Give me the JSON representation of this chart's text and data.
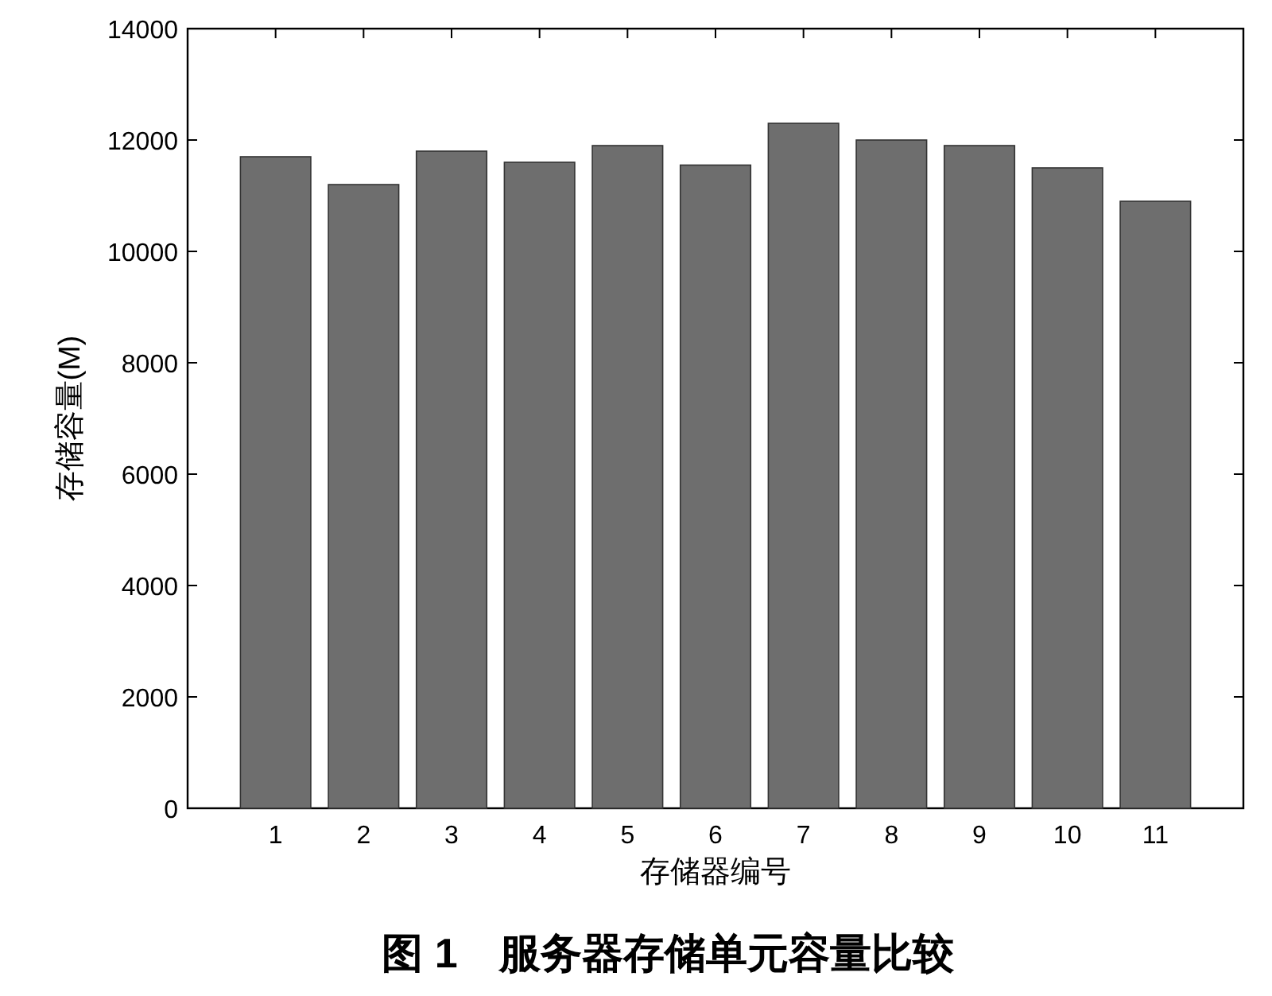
{
  "chart_data": {
    "type": "bar",
    "title": "图 1　服务器存储单元容量比较",
    "xlabel": "存储器编号",
    "ylabel": "存储容量(M)",
    "categories": [
      "1",
      "2",
      "3",
      "4",
      "5",
      "6",
      "7",
      "8",
      "9",
      "10",
      "11"
    ],
    "values": [
      11700,
      11200,
      11800,
      11600,
      11900,
      11550,
      12300,
      12000,
      11900,
      11500,
      10900
    ],
    "color": "#6e6e6e",
    "ylim": [
      0,
      14000
    ],
    "yticks": [
      0,
      2000,
      4000,
      6000,
      8000,
      10000,
      12000,
      14000
    ],
    "grid": false
  }
}
